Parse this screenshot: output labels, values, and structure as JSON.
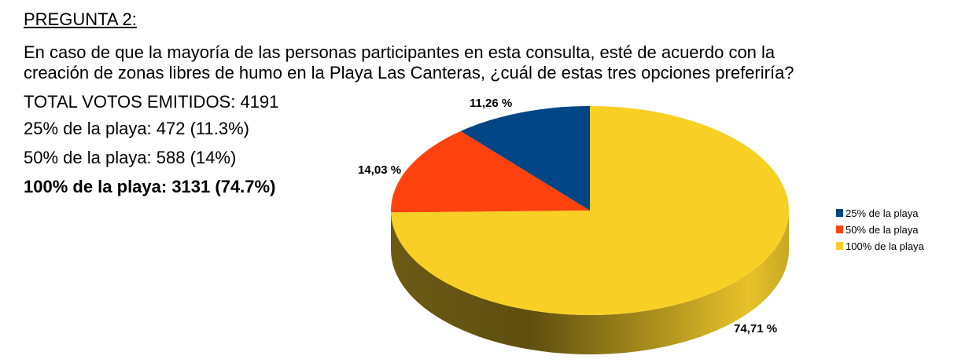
{
  "header": {
    "title": "PREGUNTA 2:",
    "question_line1": "En caso de que la mayoría de las personas participantes en esta consulta, esté de acuerdo con la",
    "question_line2": "creación de zonas libres de humo en la Playa Las Canteras, ¿cuál de estas tres opciones preferiría?"
  },
  "summary": {
    "total": "TOTAL VOTOS EMITIDOS: 4191",
    "option1": "25% de la playa: 472 (11.3%)",
    "option2": "50% de la playa: 588 (14%)",
    "option3": "100% de la playa: 3131 (74.7%)"
  },
  "chart_data": {
    "type": "pie",
    "style": "3d",
    "categories": [
      "25% de la playa",
      "50% de la playa",
      "100% de la playa"
    ],
    "values": [
      11.26,
      14.03,
      74.71
    ],
    "data_labels": [
      "11,26 %",
      "14,03 %",
      "74,71 %"
    ],
    "colors": [
      "#004586",
      "#ff420e",
      "#f8d025"
    ],
    "legend_position": "right"
  }
}
